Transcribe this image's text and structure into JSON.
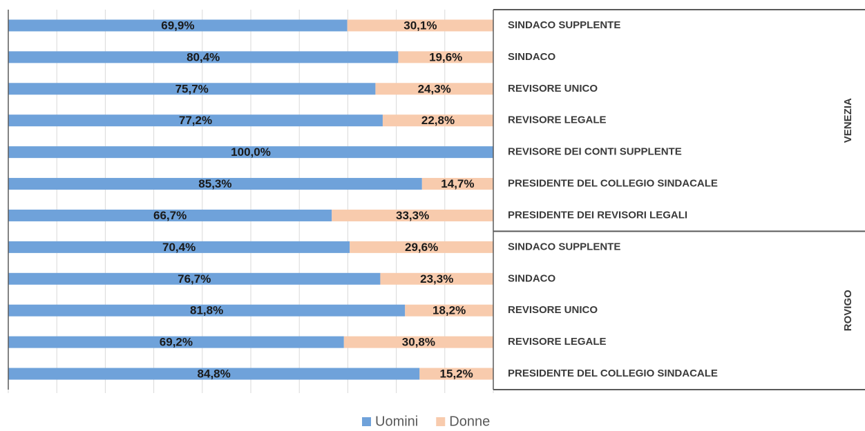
{
  "chart_data": {
    "type": "stacked-bar-horizontal",
    "groups": [
      {
        "name": "VENEZIA",
        "categories": [
          "SINDACO SUPPLENTE",
          "SINDACO",
          "REVISORE UNICO",
          "REVISORE LEGALE",
          "REVISORE DEI CONTI SUPPLENTE",
          "PRESIDENTE DEL COLLEGIO SINDACALE",
          "PRESIDENTE DEI REVISORI LEGALI"
        ]
      },
      {
        "name": "ROVIGO",
        "categories": [
          "SINDACO SUPPLENTE",
          "SINDACO",
          "REVISORE UNICO",
          "REVISORE LEGALE",
          "PRESIDENTE DEL COLLEGIO SINDACALE"
        ]
      }
    ],
    "series": [
      {
        "name": "Uomini",
        "color": "#6fa2da",
        "values": [
          69.9,
          80.4,
          75.7,
          77.2,
          100.0,
          85.3,
          66.7,
          70.4,
          76.7,
          81.8,
          69.2,
          84.8
        ],
        "value_labels": [
          "69,9%",
          "80,4%",
          "75,7%",
          "77,2%",
          "100,0%",
          "85,3%",
          "66,7%",
          "70,4%",
          "76,7%",
          "81,8%",
          "69,2%",
          "84,8%"
        ]
      },
      {
        "name": "Donne",
        "color": "#f8cbad",
        "values": [
          30.1,
          19.6,
          24.3,
          22.8,
          0,
          14.7,
          33.3,
          29.6,
          23.3,
          18.2,
          30.8,
          15.2
        ],
        "value_labels": [
          "30,1%",
          "19,6%",
          "24,3%",
          "22,8%",
          null,
          "14,7%",
          "33,3%",
          "29,6%",
          "23,3%",
          "18,2%",
          "30,8%",
          "15,2%"
        ]
      }
    ],
    "xlim": [
      0,
      100
    ],
    "xticks": [
      0,
      10,
      20,
      30,
      40,
      50,
      60,
      70,
      80,
      90,
      100
    ],
    "grid": true,
    "legend": "bottom"
  }
}
